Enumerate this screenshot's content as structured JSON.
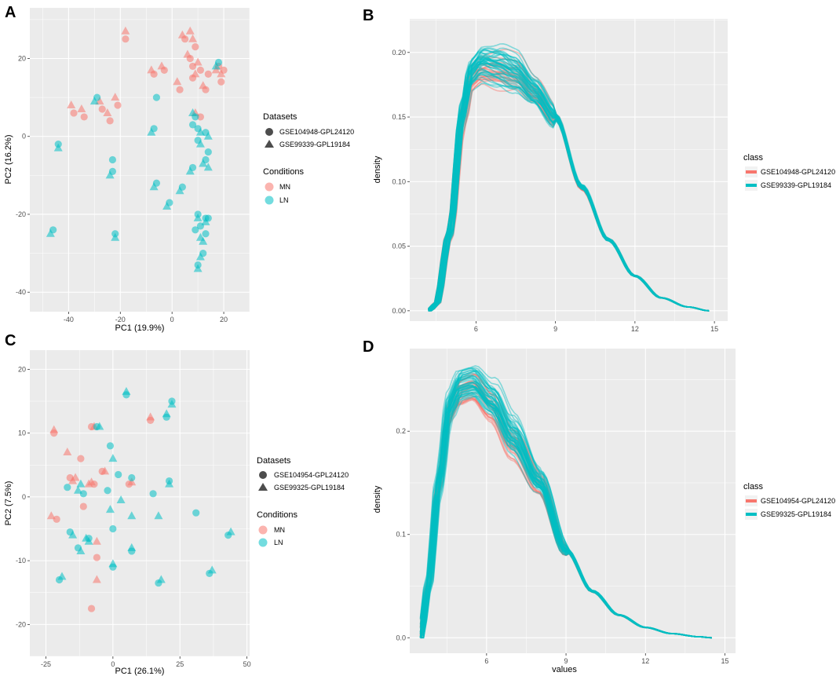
{
  "chart_data": [
    {
      "panel": "A",
      "type": "scatter",
      "xlabel": "PC1 (19.9%)",
      "ylabel": "PC2 (16.2%)",
      "xlim": [
        -55,
        30
      ],
      "ylim": [
        -45,
        33
      ],
      "xticks": [
        -40,
        -20,
        0,
        20
      ],
      "yticks": [
        -40,
        -20,
        0,
        20
      ],
      "legend_datasets_title": "Datasets",
      "legend_datasets": [
        {
          "label": "GSE104948-GPL24120",
          "shape": "circle"
        },
        {
          "label": "GSE99339-GPL19184",
          "shape": "triangle"
        }
      ],
      "legend_conditions_title": "Conditions",
      "legend_conditions": [
        {
          "label": "MN",
          "color": "#F8766D"
        },
        {
          "label": "LN",
          "color": "#00BFC4"
        }
      ],
      "series": [
        {
          "condition": "MN",
          "points": [
            [
              -18,
              25,
              "c"
            ],
            [
              -18,
              27,
              "t"
            ],
            [
              -39,
              8,
              "t"
            ],
            [
              -38,
              6,
              "c"
            ],
            [
              -35,
              7,
              "t"
            ],
            [
              -34,
              5,
              "c"
            ],
            [
              -28,
              9,
              "t"
            ],
            [
              -27,
              7,
              "c"
            ],
            [
              -25,
              6,
              "t"
            ],
            [
              -24,
              4,
              "c"
            ],
            [
              -22,
              10,
              "t"
            ],
            [
              -21,
              8,
              "c"
            ],
            [
              -8,
              17,
              "t"
            ],
            [
              -7,
              16,
              "c"
            ],
            [
              -4,
              18,
              "t"
            ],
            [
              -3,
              17,
              "c"
            ],
            [
              2,
              14,
              "t"
            ],
            [
              3,
              12,
              "c"
            ],
            [
              4,
              26,
              "t"
            ],
            [
              5,
              25,
              "c"
            ],
            [
              7,
              27,
              "t"
            ],
            [
              6,
              21,
              "t"
            ],
            [
              7,
              20,
              "c"
            ],
            [
              8,
              18,
              "c"
            ],
            [
              8,
              25,
              "t"
            ],
            [
              9,
              23,
              "c"
            ],
            [
              10,
              19,
              "t"
            ],
            [
              11,
              17,
              "c"
            ],
            [
              12,
              13,
              "t"
            ],
            [
              13,
              12,
              "c"
            ],
            [
              17,
              17,
              "t"
            ],
            [
              18,
              18,
              "c"
            ],
            [
              19,
              16,
              "t"
            ],
            [
              20,
              17,
              "c"
            ],
            [
              19,
              14,
              "c"
            ],
            [
              9,
              6,
              "t"
            ],
            [
              11,
              5,
              "c"
            ],
            [
              8,
              15,
              "c"
            ],
            [
              9,
              16,
              "t"
            ],
            [
              14,
              16,
              "c"
            ]
          ]
        },
        {
          "condition": "LN",
          "points": [
            [
              -29,
              10,
              "c"
            ],
            [
              -30,
              9,
              "t"
            ],
            [
              -44,
              -2,
              "c"
            ],
            [
              -44,
              -3,
              "t"
            ],
            [
              -46,
              -24,
              "c"
            ],
            [
              -47,
              -25,
              "t"
            ],
            [
              -23,
              -9,
              "c"
            ],
            [
              -24,
              -10,
              "t"
            ],
            [
              -23,
              -6,
              "c"
            ],
            [
              -22,
              -25,
              "c"
            ],
            [
              -22,
              -26,
              "t"
            ],
            [
              -6,
              10,
              "c"
            ],
            [
              -7,
              2,
              "c"
            ],
            [
              -8,
              1,
              "t"
            ],
            [
              -6,
              -12,
              "c"
            ],
            [
              -7,
              -13,
              "t"
            ],
            [
              -1,
              -17,
              "c"
            ],
            [
              -2,
              -18,
              "t"
            ],
            [
              4,
              -13,
              "c"
            ],
            [
              3,
              -14,
              "t"
            ],
            [
              8,
              -8,
              "c"
            ],
            [
              7,
              -9,
              "t"
            ],
            [
              9,
              5,
              "c"
            ],
            [
              8,
              3,
              "c"
            ],
            [
              8,
              6,
              "t"
            ],
            [
              10,
              2,
              "c"
            ],
            [
              11,
              1,
              "t"
            ],
            [
              10,
              -1,
              "c"
            ],
            [
              11,
              -2,
              "t"
            ],
            [
              13,
              1,
              "c"
            ],
            [
              14,
              0,
              "t"
            ],
            [
              13,
              -6,
              "c"
            ],
            [
              12,
              -7,
              "t"
            ],
            [
              14,
              -4,
              "c"
            ],
            [
              14,
              -8,
              "t"
            ],
            [
              10,
              -20,
              "c"
            ],
            [
              10,
              -21,
              "t"
            ],
            [
              11,
              -23,
              "c"
            ],
            [
              11,
              -26,
              "t"
            ],
            [
              13,
              -21,
              "c"
            ],
            [
              13,
              -22,
              "t"
            ],
            [
              13,
              -25,
              "c"
            ],
            [
              12,
              -27,
              "t"
            ],
            [
              12,
              -30,
              "c"
            ],
            [
              11,
              -31,
              "t"
            ],
            [
              10,
              -33,
              "c"
            ],
            [
              10,
              -34,
              "t"
            ],
            [
              18,
              19,
              "c"
            ],
            [
              17,
              18,
              "t"
            ],
            [
              9,
              -24,
              "c"
            ],
            [
              14,
              -21,
              "c"
            ]
          ]
        }
      ]
    },
    {
      "panel": "B",
      "type": "line",
      "xlabel": "",
      "ylabel": "density",
      "xlim": [
        3.5,
        15.5
      ],
      "ylim": [
        -0.008,
        0.226
      ],
      "xticks": [
        6,
        9,
        12,
        15
      ],
      "yticks": [
        0.0,
        0.05,
        0.1,
        0.15,
        0.2
      ],
      "ytick_labels": [
        "0.00",
        "0.05",
        "0.10",
        "0.15",
        "0.20"
      ],
      "legend_title": "class",
      "legend": [
        {
          "label": "GSE104948-GPL24120",
          "color": "#F8766D"
        },
        {
          "label": "GSE99339-GPL19184",
          "color": "#00BFC4"
        }
      ],
      "series": [
        {
          "name": "GSE104948-GPL24120",
          "n_samples": 24,
          "x": [
            4.2,
            4.5,
            5.0,
            5.5,
            5.8,
            6.2,
            6.8,
            7.5,
            8.2,
            9.0,
            10.0,
            11.0,
            12.0,
            13.0,
            14.0,
            14.8
          ],
          "y": [
            0.0,
            0.005,
            0.06,
            0.15,
            0.18,
            0.186,
            0.185,
            0.183,
            0.17,
            0.15,
            0.095,
            0.055,
            0.027,
            0.01,
            0.003,
            0.0
          ]
        },
        {
          "name": "GSE99339-GPL19184",
          "n_samples": 46,
          "x": [
            4.2,
            4.5,
            5.0,
            5.5,
            5.8,
            6.2,
            6.8,
            7.5,
            8.2,
            9.0,
            10.0,
            11.0,
            12.0,
            13.0,
            14.0,
            14.8
          ],
          "y": [
            0.0,
            0.005,
            0.06,
            0.155,
            0.185,
            0.193,
            0.19,
            0.184,
            0.17,
            0.15,
            0.096,
            0.055,
            0.027,
            0.01,
            0.003,
            0.0
          ]
        }
      ]
    },
    {
      "panel": "C",
      "type": "scatter",
      "xlabel": "PC1 (26.1%)",
      "ylabel": "PC2 (7.5%)",
      "xlim": [
        -31,
        51
      ],
      "ylim": [
        -25,
        23
      ],
      "xticks": [
        -25,
        0,
        25,
        50
      ],
      "yticks": [
        -20,
        -10,
        0,
        10,
        20
      ],
      "legend_datasets_title": "Datasets",
      "legend_datasets": [
        {
          "label": "GSE104954-GPL24120",
          "shape": "circle"
        },
        {
          "label": "GSE99325-GPL19184",
          "shape": "triangle"
        }
      ],
      "legend_conditions_title": "Conditions",
      "legend_conditions": [
        {
          "label": "MN",
          "color": "#F8766D"
        },
        {
          "label": "LN",
          "color": "#00BFC4"
        }
      ],
      "series": [
        {
          "condition": "MN",
          "points": [
            [
              -22,
              10,
              "c"
            ],
            [
              -22,
              10.5,
              "t"
            ],
            [
              -23,
              -3,
              "t"
            ],
            [
              -21,
              -3.5,
              "c"
            ],
            [
              -17,
              7,
              "t"
            ],
            [
              -16,
              3,
              "c"
            ],
            [
              -14,
              3,
              "t"
            ],
            [
              -12,
              6,
              "c"
            ],
            [
              -11,
              -1.5,
              "c"
            ],
            [
              -9,
              2,
              "t"
            ],
            [
              -8,
              11,
              "c"
            ],
            [
              -7,
              11,
              "t"
            ],
            [
              -7,
              2,
              "c"
            ],
            [
              -6,
              -7,
              "t"
            ],
            [
              -6,
              -9.5,
              "c"
            ],
            [
              -6,
              -13,
              "t"
            ],
            [
              -8,
              -17.5,
              "c"
            ],
            [
              -4,
              4,
              "c"
            ],
            [
              -3,
              4,
              "t"
            ],
            [
              6,
              2,
              "c"
            ],
            [
              7,
              2.3,
              "t"
            ],
            [
              14,
              12,
              "c"
            ],
            [
              14,
              12.5,
              "t"
            ],
            [
              -8,
              2.3,
              "t"
            ],
            [
              -15,
              2.5,
              "t"
            ]
          ]
        },
        {
          "condition": "LN",
          "points": [
            [
              -17,
              1.5,
              "c"
            ],
            [
              -20,
              -13,
              "c"
            ],
            [
              -19,
              -12.5,
              "t"
            ],
            [
              -16,
              -5.5,
              "c"
            ],
            [
              -15,
              -6,
              "t"
            ],
            [
              -13,
              -8,
              "c"
            ],
            [
              -12,
              -8.5,
              "t"
            ],
            [
              -11,
              0.5,
              "c"
            ],
            [
              -12,
              2,
              "t"
            ],
            [
              -9,
              -6.5,
              "c"
            ],
            [
              -9,
              -7,
              "t"
            ],
            [
              -6,
              11,
              "c"
            ],
            [
              -5,
              11,
              "t"
            ],
            [
              -1,
              8,
              "c"
            ],
            [
              0,
              6,
              "t"
            ],
            [
              -2,
              1,
              "c"
            ],
            [
              -1,
              -2,
              "t"
            ],
            [
              0,
              -5,
              "c"
            ],
            [
              0,
              -11,
              "c"
            ],
            [
              0,
              -10.5,
              "t"
            ],
            [
              2,
              3.5,
              "c"
            ],
            [
              3,
              -0.5,
              "t"
            ],
            [
              5,
              16,
              "c"
            ],
            [
              5,
              16.5,
              "t"
            ],
            [
              7,
              3,
              "c"
            ],
            [
              7,
              -3,
              "t"
            ],
            [
              7,
              -8.5,
              "c"
            ],
            [
              7,
              -8,
              "t"
            ],
            [
              15,
              0.5,
              "c"
            ],
            [
              17,
              -3,
              "t"
            ],
            [
              17,
              -13.5,
              "c"
            ],
            [
              18,
              -13,
              "t"
            ],
            [
              20,
              12.5,
              "c"
            ],
            [
              20,
              13,
              "t"
            ],
            [
              21,
              2.5,
              "c"
            ],
            [
              21,
              2,
              "t"
            ],
            [
              22,
              15,
              "c"
            ],
            [
              22,
              14.5,
              "t"
            ],
            [
              31,
              -2.5,
              "c"
            ],
            [
              36,
              -12,
              "c"
            ],
            [
              37,
              -11.5,
              "t"
            ],
            [
              43,
              -6,
              "c"
            ],
            [
              44,
              -5.5,
              "t"
            ],
            [
              -13,
              1,
              "t"
            ],
            [
              -10,
              -6.5,
              "t"
            ]
          ]
        }
      ]
    },
    {
      "panel": "D",
      "type": "line",
      "xlabel": "values",
      "ylabel": "density",
      "xlim": [
        3.1,
        15.4
      ],
      "ylim": [
        -0.015,
        0.28
      ],
      "xticks": [
        6,
        9,
        12,
        15
      ],
      "yticks": [
        0.0,
        0.1,
        0.2
      ],
      "ytick_labels": [
        "0.0",
        "0.1",
        "0.2"
      ],
      "legend_title": "class",
      "legend": [
        {
          "label": "GSE104954-GPL24120",
          "color": "#F8766D"
        },
        {
          "label": "GSE99325-GPL19184",
          "color": "#00BFC4"
        }
      ],
      "series": [
        {
          "name": "GSE104954-GPL24120",
          "n_samples": 24,
          "x": [
            3.5,
            3.8,
            4.2,
            4.6,
            5.0,
            5.5,
            6.2,
            7.0,
            8.0,
            9.0,
            10.0,
            11.0,
            12.0,
            13.0,
            14.0,
            14.5
          ],
          "y": [
            0.0,
            0.05,
            0.15,
            0.22,
            0.24,
            0.245,
            0.225,
            0.19,
            0.15,
            0.085,
            0.045,
            0.022,
            0.01,
            0.004,
            0.001,
            0.0
          ]
        },
        {
          "name": "GSE99325-GPL19184",
          "n_samples": 46,
          "x": [
            3.5,
            3.8,
            4.2,
            4.6,
            5.0,
            5.5,
            6.2,
            7.0,
            8.0,
            9.0,
            10.0,
            11.0,
            12.0,
            13.0,
            14.0,
            14.5
          ],
          "y": [
            0.0,
            0.05,
            0.15,
            0.225,
            0.245,
            0.248,
            0.23,
            0.195,
            0.152,
            0.085,
            0.045,
            0.022,
            0.01,
            0.004,
            0.001,
            0.0
          ]
        }
      ]
    }
  ]
}
